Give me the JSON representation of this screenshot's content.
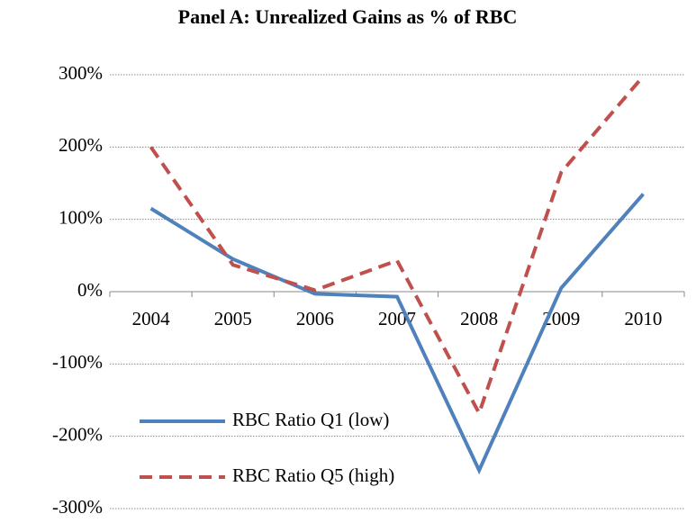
{
  "chart_data": {
    "type": "line",
    "title": "Panel A: Unrealized Gains as % of RBC",
    "categories": [
      "2004",
      "2005",
      "2006",
      "2007",
      "2008",
      "2009",
      "2010"
    ],
    "series": [
      {
        "name": "RBC Ratio Q1 (low)",
        "color": "#4f81bd",
        "dash": "solid",
        "values": [
          115,
          45,
          -3,
          -7,
          -247,
          5,
          135
        ]
      },
      {
        "name": "RBC Ratio Q5 (high)",
        "color": "#c0504d",
        "dash": "dashed",
        "values": [
          200,
          37,
          2,
          43,
          -168,
          165,
          298
        ]
      }
    ],
    "ylim": [
      -300,
      300
    ],
    "yticks": [
      {
        "value": -300,
        "label": "-300%"
      },
      {
        "value": -200,
        "label": "-200%"
      },
      {
        "value": -100,
        "label": "-100%"
      },
      {
        "value": 0,
        "label": "0%"
      },
      {
        "value": 100,
        "label": "100%"
      },
      {
        "value": 200,
        "label": "200%"
      },
      {
        "value": 300,
        "label": "300%"
      }
    ],
    "grid": true,
    "legend": "lower left"
  }
}
